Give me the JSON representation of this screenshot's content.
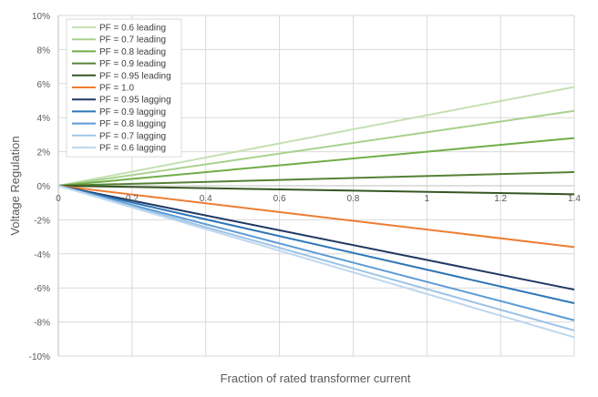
{
  "chart_data": {
    "type": "line",
    "xlabel": "Fraction of rated transformer current",
    "ylabel": "Voltage Regulation",
    "xlim": [
      0,
      1.4
    ],
    "ylim": [
      -10,
      10
    ],
    "x_ticks": [
      0,
      0.2,
      0.4,
      0.6,
      0.8,
      1,
      1.2,
      1.4
    ],
    "x_tick_labels": [
      "0",
      "0.2",
      "0.4",
      "0.6",
      "0.8",
      "1",
      "1.2",
      "1.4"
    ],
    "y_ticks": [
      -10,
      -8,
      -6,
      -4,
      -2,
      0,
      2,
      4,
      6,
      8,
      10
    ],
    "y_tick_labels": [
      "-10%",
      "-8%",
      "-6%",
      "-4%",
      "-2%",
      "0%",
      "2%",
      "4%",
      "6%",
      "8%",
      "10%"
    ],
    "grid": true,
    "legend_position": "top-left",
    "x": [
      0,
      1.4
    ],
    "series": [
      {
        "name": "PF = 0.6 leading",
        "color": "#c5e0b4",
        "values": [
          0,
          5.8
        ]
      },
      {
        "name": "PF = 0.7 leading",
        "color": "#a9d18e",
        "values": [
          0,
          4.4
        ]
      },
      {
        "name": "PF = 0.8 leading",
        "color": "#70ad47",
        "values": [
          0,
          2.8
        ]
      },
      {
        "name": "PF = 0.9 leading",
        "color": "#548235",
        "values": [
          0,
          0.8
        ]
      },
      {
        "name": "PF = 0.95 leading",
        "color": "#375623",
        "values": [
          0,
          -0.5
        ]
      },
      {
        "name": "PF = 1.0",
        "color": "#ed7d31",
        "values": [
          0,
          -3.6
        ]
      },
      {
        "name": "PF = 0.95 lagging",
        "color": "#1f3864",
        "values": [
          0,
          -6.1
        ]
      },
      {
        "name": "PF = 0.9 lagging",
        "color": "#2e75b6",
        "values": [
          0,
          -6.9
        ]
      },
      {
        "name": "PF = 0.8 lagging",
        "color": "#5b9bd5",
        "values": [
          0,
          -7.9
        ]
      },
      {
        "name": "PF = 0.7 lagging",
        "color": "#9dc3e6",
        "values": [
          0,
          -8.5
        ]
      },
      {
        "name": "PF = 0.6 lagging",
        "color": "#bdd7ee",
        "values": [
          0,
          -8.9
        ]
      }
    ]
  }
}
